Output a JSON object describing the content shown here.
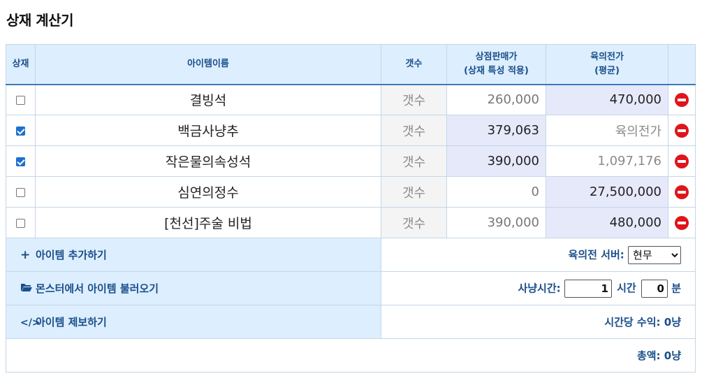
{
  "page_title": "상재 계산기",
  "columns": {
    "check": "상재",
    "name": "아이템이름",
    "qty": "갯수",
    "shop_line1": "상점판매가",
    "shop_line2": "(상재 특성 적용)",
    "avg_line1": "육의전가",
    "avg_line2": "(평균)"
  },
  "items": [
    {
      "checked": false,
      "name": "결빙석",
      "qty": "갯수",
      "shop_price": "260,000",
      "avg_price": "470,000"
    },
    {
      "checked": true,
      "name": "백금사냥추",
      "qty": "갯수",
      "shop_price": "379,063",
      "avg_price": "육의전가"
    },
    {
      "checked": true,
      "name": "작은물의속성석",
      "qty": "갯수",
      "shop_price": "390,000",
      "avg_price": "1,097,176"
    },
    {
      "checked": false,
      "name": "심연의정수",
      "qty": "갯수",
      "shop_price": "0",
      "avg_price": "27,500,000"
    },
    {
      "checked": false,
      "name": "[천선]주술 비법",
      "qty": "갯수",
      "shop_price": "390,000",
      "avg_price": "480,000"
    }
  ],
  "actions": {
    "add_item": "아이템 추가하기",
    "load_from_monster": "몬스터에서 아이템 불러오기",
    "report_item": "아이템 제보하기"
  },
  "settings": {
    "server_label": "육의전 서버:",
    "server_value": "현무",
    "hunt_time_label": "사냥시간:",
    "hours_value": "1",
    "hours_unit": "시간",
    "minutes_value": "0",
    "minutes_unit": "분"
  },
  "results": {
    "hourly_income": "시간당 수익: 0냥",
    "total": "총액: 0냥"
  },
  "icons": {
    "add": "plus-icon",
    "load": "folder-open-icon",
    "report": "code-icon",
    "delete": "minus-circle-icon"
  },
  "colors": {
    "header_bg": "#ddeeff",
    "header_text": "#1a4f8a",
    "selected_cell_bg": "#e6e9fa",
    "delete_red": "#e0141b"
  }
}
